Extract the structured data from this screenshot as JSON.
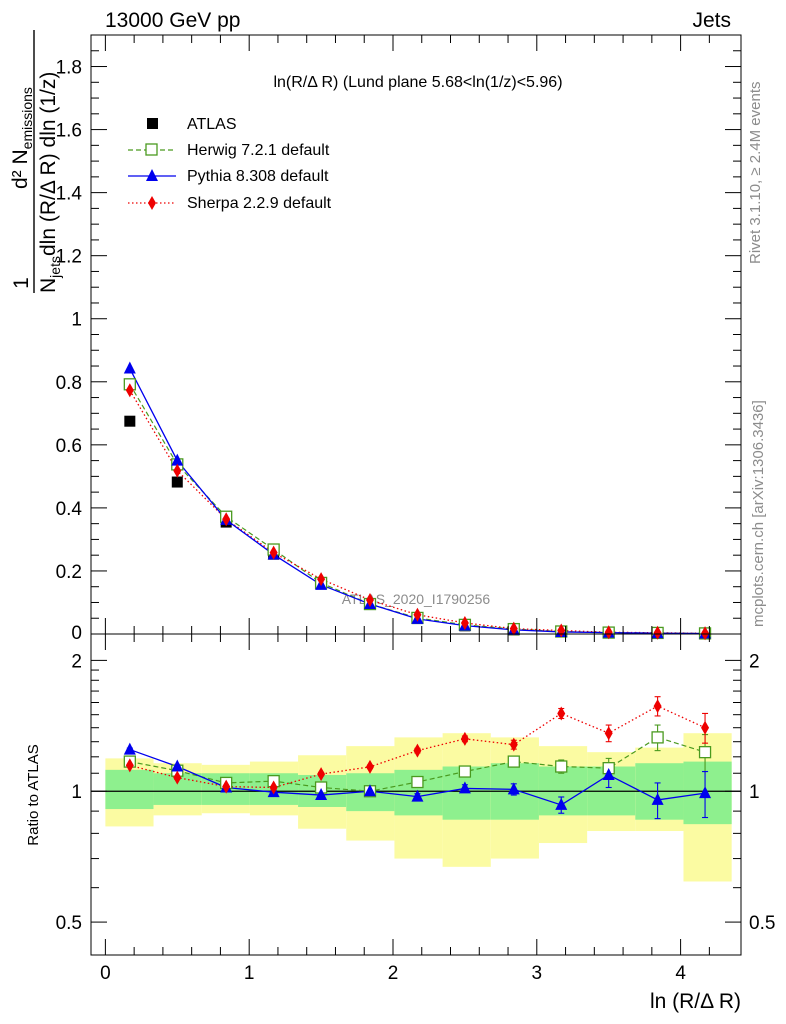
{
  "header": {
    "left": "13000 GeV pp",
    "right": "Jets"
  },
  "side_labels": {
    "rivet": "Rivet 3.1.10, ≥ 2.4M events",
    "mcplots": "mcplots.cern.ch [arXiv:1306.3436]"
  },
  "chart_data": [
    {
      "type": "scatter",
      "title": "ln(R/Δ R) (Lund plane 5.68<ln(1/z)<5.96)",
      "watermark": "ATLAS_2020_I1790256",
      "ylabel": "1 / N_jets  d² N_emissions / dln (R/Δ R) dln (1/z)",
      "ylabel_parts": {
        "numerator": "d² N",
        "numerator_sub": "emissions",
        "prefix_one": "1",
        "denom_prefix": "N",
        "denom_sub": "jets",
        "denom_suffix": "dln (R/Δ R) dln (1/z)"
      },
      "xlim": [
        -0.1,
        4.42
      ],
      "ylim": [
        0,
        1.9
      ],
      "yticks": [
        0.2,
        0.4,
        0.6,
        0.8,
        1,
        1.2,
        1.4,
        1.6,
        1.8
      ],
      "ytick_labels": [
        "0.2",
        "0.4",
        "0.6",
        "0.8",
        "1",
        "1.2",
        "1.4",
        "1.6",
        "1.8"
      ],
      "y_zero_label": "0",
      "x": [
        0.17,
        0.5,
        0.84,
        1.17,
        1.5,
        1.84,
        2.17,
        2.5,
        2.84,
        3.17,
        3.5,
        3.84,
        4.17
      ],
      "legend_position": "top-left",
      "series": [
        {
          "name": "ATLAS",
          "style": "square",
          "color": "#000000",
          "values": [
            0.675,
            0.482,
            0.355,
            0.253,
            0.159,
            0.095,
            0.049,
            0.026,
            0.013,
            0.007,
            0.004,
            0.0025,
            0.0015
          ]
        },
        {
          "name": "Herwig 7.2.1 default",
          "style": "open-square-dashed",
          "color": "#4a9a1f",
          "values": [
            0.792,
            0.538,
            0.372,
            0.268,
            0.162,
            0.095,
            0.051,
            0.029,
            0.0155,
            0.008,
            0.0045,
            0.0034,
            0.0019
          ]
        },
        {
          "name": "Pythia 8.308 default",
          "style": "triangle-solid",
          "color": "#0000ee",
          "values": [
            0.842,
            0.55,
            0.362,
            0.252,
            0.156,
            0.095,
            0.048,
            0.0265,
            0.013,
            0.0065,
            0.0044,
            0.0024,
            0.0015
          ]
        },
        {
          "name": "Sherpa 2.2.9 default",
          "style": "diamond-dotted",
          "color": "#ee0000",
          "values": [
            0.773,
            0.518,
            0.364,
            0.258,
            0.174,
            0.108,
            0.061,
            0.035,
            0.017,
            0.011,
            0.0055,
            0.004,
            0.0022
          ]
        }
      ]
    },
    {
      "type": "scatter",
      "ylabel": "Ratio to ATLAS",
      "xlabel": "ln (R/Δ R)",
      "xlim": [
        -0.1,
        4.42
      ],
      "ylim": [
        0.42,
        2.3
      ],
      "xticks": [
        0,
        1,
        2,
        3,
        4
      ],
      "xtick_labels": [
        "0",
        "1",
        "2",
        "3",
        "4"
      ],
      "yticks": [
        0.5,
        1,
        2
      ],
      "ytick_labels": [
        "0.5",
        "1",
        "2"
      ],
      "bin_edges": [
        0,
        0.335,
        0.67,
        1.005,
        1.34,
        1.675,
        2.01,
        2.345,
        2.68,
        3.015,
        3.35,
        3.685,
        4.02,
        4.355
      ],
      "band_green": [
        [
          0.91,
          1.12
        ],
        [
          0.93,
          1.1
        ],
        [
          0.93,
          1.1
        ],
        [
          0.93,
          1.1
        ],
        [
          0.92,
          1.09
        ],
        [
          0.9,
          1.1
        ],
        [
          0.88,
          1.12
        ],
        [
          0.86,
          1.14
        ],
        [
          0.86,
          1.16
        ],
        [
          0.88,
          1.14
        ],
        [
          0.88,
          1.14
        ],
        [
          0.86,
          1.16
        ],
        [
          0.84,
          1.17
        ]
      ],
      "band_yellow": [
        [
          0.83,
          1.19
        ],
        [
          0.88,
          1.16
        ],
        [
          0.89,
          1.15
        ],
        [
          0.88,
          1.17
        ],
        [
          0.82,
          1.21
        ],
        [
          0.77,
          1.27
        ],
        [
          0.7,
          1.33
        ],
        [
          0.67,
          1.36
        ],
        [
          0.7,
          1.33
        ],
        [
          0.76,
          1.27
        ],
        [
          0.81,
          1.23
        ],
        [
          0.81,
          1.26
        ],
        [
          0.62,
          1.36
        ]
      ],
      "x": [
        0.17,
        0.5,
        0.84,
        1.17,
        1.5,
        1.84,
        2.17,
        2.5,
        2.84,
        3.17,
        3.5,
        3.84,
        4.17
      ],
      "series": [
        {
          "name": "Herwig 7.2.1 default",
          "color": "#4a9a1f",
          "values": [
            1.17,
            1.115,
            1.045,
            1.055,
            1.02,
            1.0,
            1.05,
            1.11,
            1.17,
            1.14,
            1.13,
            1.33,
            1.23
          ],
          "errors": [
            0.01,
            0.01,
            0.01,
            0.01,
            0.01,
            0.01,
            0.01,
            0.015,
            0.02,
            0.04,
            0.06,
            0.09,
            0.12
          ]
        },
        {
          "name": "Pythia 8.308 default",
          "color": "#0000ee",
          "values": [
            1.247,
            1.14,
            1.02,
            0.995,
            0.98,
            1.0,
            0.972,
            1.015,
            1.01,
            0.93,
            1.09,
            0.955,
            0.99
          ],
          "errors": [
            0.01,
            0.01,
            0.01,
            0.01,
            0.01,
            0.01,
            0.015,
            0.02,
            0.03,
            0.04,
            0.07,
            0.09,
            0.12
          ]
        },
        {
          "name": "Sherpa 2.2.9 default",
          "color": "#ee0000",
          "values": [
            1.147,
            1.075,
            1.025,
            1.02,
            1.095,
            1.138,
            1.24,
            1.32,
            1.28,
            1.51,
            1.36,
            1.57,
            1.4
          ],
          "errors": [
            0.01,
            0.01,
            0.01,
            0.01,
            0.01,
            0.01,
            0.015,
            0.02,
            0.03,
            0.04,
            0.06,
            0.08,
            0.11
          ]
        }
      ]
    }
  ]
}
